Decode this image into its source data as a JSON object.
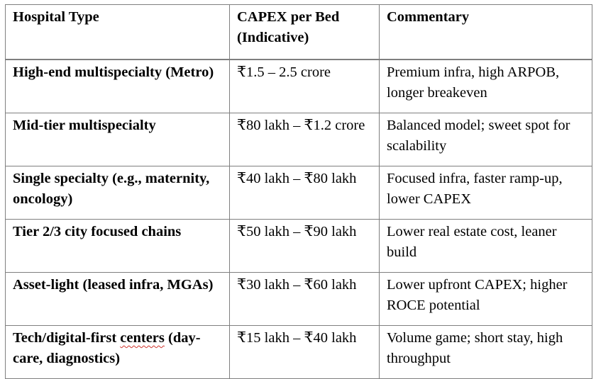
{
  "table": {
    "headers": {
      "type": "Hospital Type",
      "capex": "CAPEX per Bed (Indicative)",
      "commentary": "Commentary"
    },
    "rows": [
      {
        "type": "High-end multispecialty (Metro)",
        "capex": "₹1.5 – 2.5 crore",
        "commentary": "Premium infra, high ARPOB, longer breakeven"
      },
      {
        "type": "Mid-tier multispecialty",
        "capex": "₹80 lakh – ₹1.2 crore",
        "commentary": "Balanced model; sweet spot for scalability"
      },
      {
        "type": "Single specialty (e.g., maternity, oncology)",
        "capex": "₹40 lakh – ₹80 lakh",
        "commentary": "Focused infra, faster ramp-up, lower CAPEX"
      },
      {
        "type": "Tier 2/3 city focused chains",
        "capex": "₹50 lakh – ₹90 lakh",
        "commentary": "Lower real estate cost, leaner build"
      },
      {
        "type": "Asset-light (leased infra, MGAs)",
        "capex": "₹30 lakh – ₹60 lakh",
        "commentary": "Lower upfront CAPEX; higher ROCE potential"
      },
      {
        "type_prefix": "Tech/digital-first ",
        "type_flagged": "centers",
        "type_suffix": " (day-care, diagnostics)",
        "capex": "₹15 lakh – ₹40 lakh",
        "commentary": "Volume game; short stay, high throughput"
      }
    ]
  },
  "colors": {
    "border": "#7f7f7f",
    "spellcheck_underline": "#d0342c"
  }
}
